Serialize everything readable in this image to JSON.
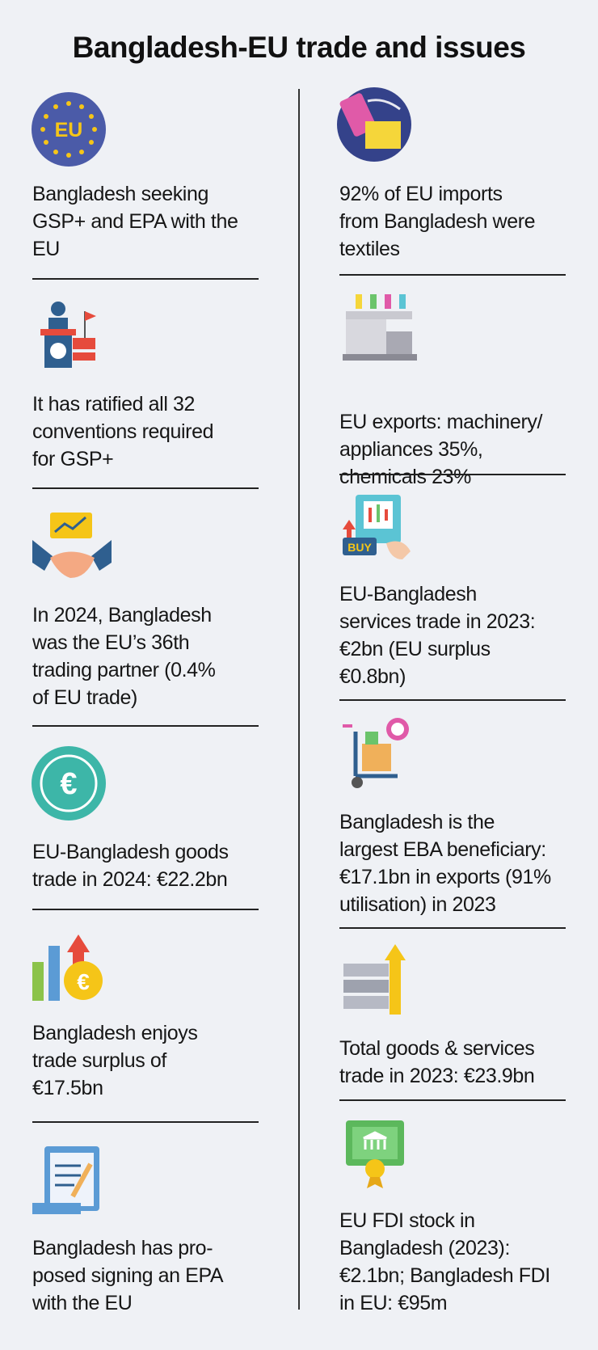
{
  "title": "Bangladesh-EU trade and issues",
  "icon_text": {
    "eu": "EU",
    "euro": "€",
    "buy": "BUY",
    "coin": "€"
  },
  "left": [
    {
      "lines": [
        "Bangladesh seeking",
        "GSP+ and EPA with the",
        "EU"
      ]
    },
    {
      "lines": [
        "It has ratified all 32",
        "conventions required",
        "for GSP+"
      ]
    },
    {
      "lines": [
        "In 2024, Bangladesh",
        "was the EU’s 36th",
        "trading partner (0.4%",
        "of EU trade)"
      ]
    },
    {
      "lines": [
        "EU-Bangladesh goods",
        "trade in 2024: €22.2bn"
      ]
    },
    {
      "lines": [
        "Bangladesh enjoys",
        "trade surplus of",
        "€17.5bn"
      ]
    },
    {
      "lines": [
        "Bangladesh has pro-",
        "posed signing an EPA",
        "with the EU"
      ]
    }
  ],
  "right": [
    {
      "lines": [
        "92% of EU imports",
        "from Bangladesh were",
        "textiles"
      ]
    },
    {
      "lines": [
        "EU exports: machinery/",
        "appliances 35%,",
        "chemicals 23%"
      ]
    },
    {
      "lines": [
        "EU-Bangladesh",
        "services trade in 2023:",
        "€2bn (EU surplus",
        "€0.8bn)"
      ]
    },
    {
      "lines": [
        "Bangladesh is the",
        "largest EBA beneficiary:",
        "€17.1bn in exports (91%",
        "utilisation) in 2023"
      ]
    },
    {
      "lines": [
        "Total goods & services",
        "trade in 2023: €23.9bn"
      ]
    },
    {
      "lines": [
        "EU FDI stock in",
        "Bangladesh (2023):",
        "€2.1bn; Bangladesh FDI",
        "in EU: €95m"
      ]
    }
  ]
}
